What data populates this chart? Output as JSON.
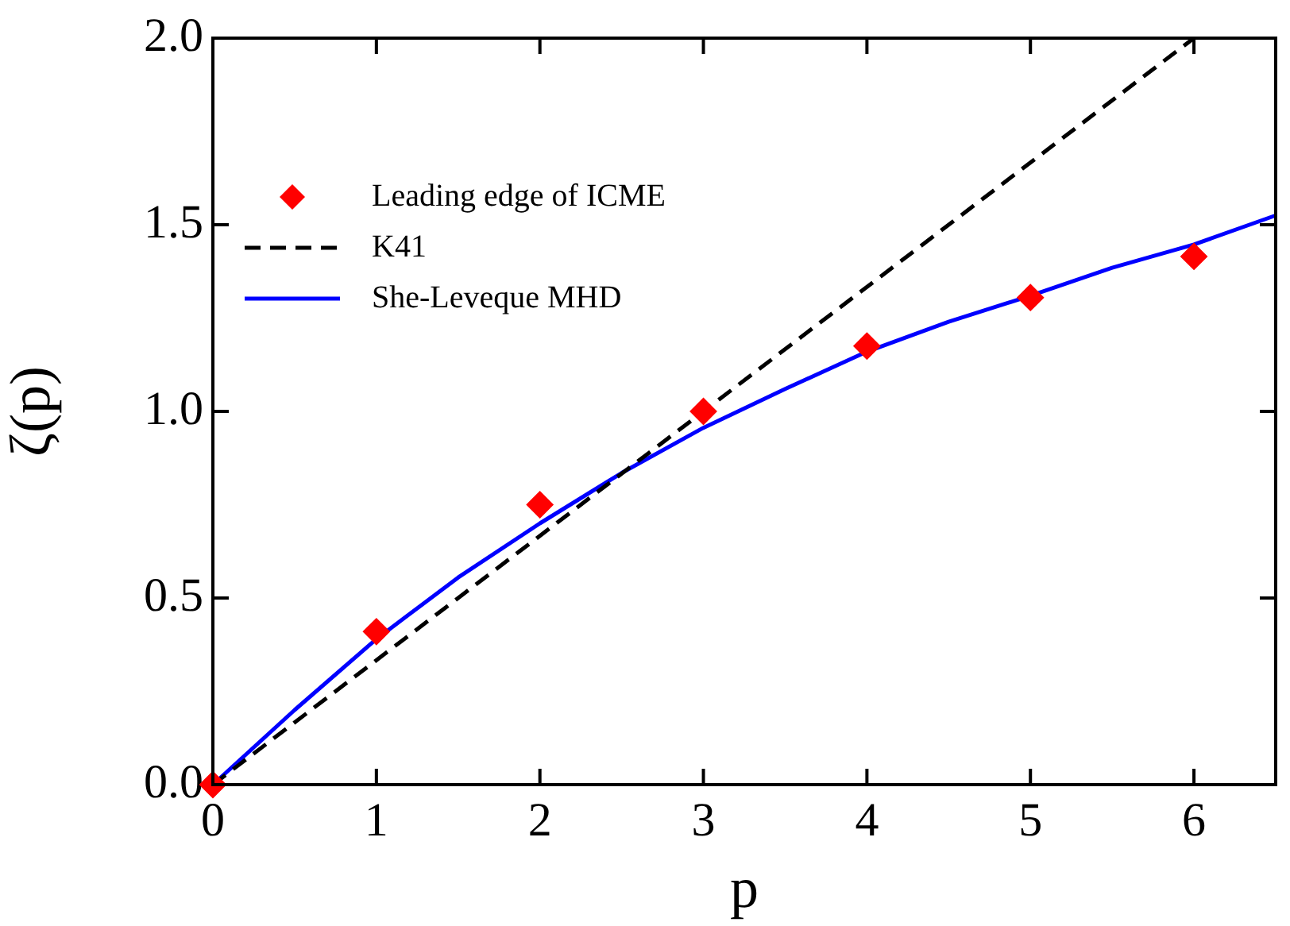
{
  "chart_data": {
    "type": "scatter",
    "xlabel": "p",
    "ylabel": "ζ(p)",
    "xlim": [
      0,
      6.5
    ],
    "xticks": [
      0,
      1,
      2,
      3,
      4,
      5,
      6
    ],
    "ylim": [
      0,
      2
    ],
    "yticks": [
      {
        "value": 0,
        "label": "0.0"
      },
      0.5,
      {
        "value": 1,
        "label": "1.0"
      },
      1.5,
      {
        "value": 2,
        "label": "2.0"
      }
    ],
    "legend": "top left",
    "grid": false,
    "series": [
      {
        "name": "Leading edge of ICME",
        "marker": "diamond",
        "color": "#ff0000",
        "x": [
          0,
          1,
          2,
          3,
          4,
          5,
          6
        ],
        "values": [
          0,
          0.41,
          0.75,
          1.0,
          1.175,
          1.305,
          1.415
        ]
      },
      {
        "name": "K41",
        "type": "line",
        "line_style": "dashed",
        "marker": "none",
        "color": "#000000",
        "x": [
          0,
          6
        ],
        "values": [
          0,
          2
        ]
      },
      {
        "name": "She-Leveque MHD",
        "type": "line",
        "line_style": "solid",
        "marker": "none",
        "color": "#0000ff",
        "x": [
          0,
          0.5,
          1,
          1.5,
          2,
          2.5,
          3,
          3.5,
          4,
          4.5,
          5,
          5.5,
          6,
          6.5
        ],
        "values": [
          0,
          0.2,
          0.39,
          0.555,
          0.7,
          0.835,
          0.956,
          1.06,
          1.16,
          1.24,
          1.31,
          1.385,
          1.447,
          1.525
        ]
      }
    ]
  }
}
